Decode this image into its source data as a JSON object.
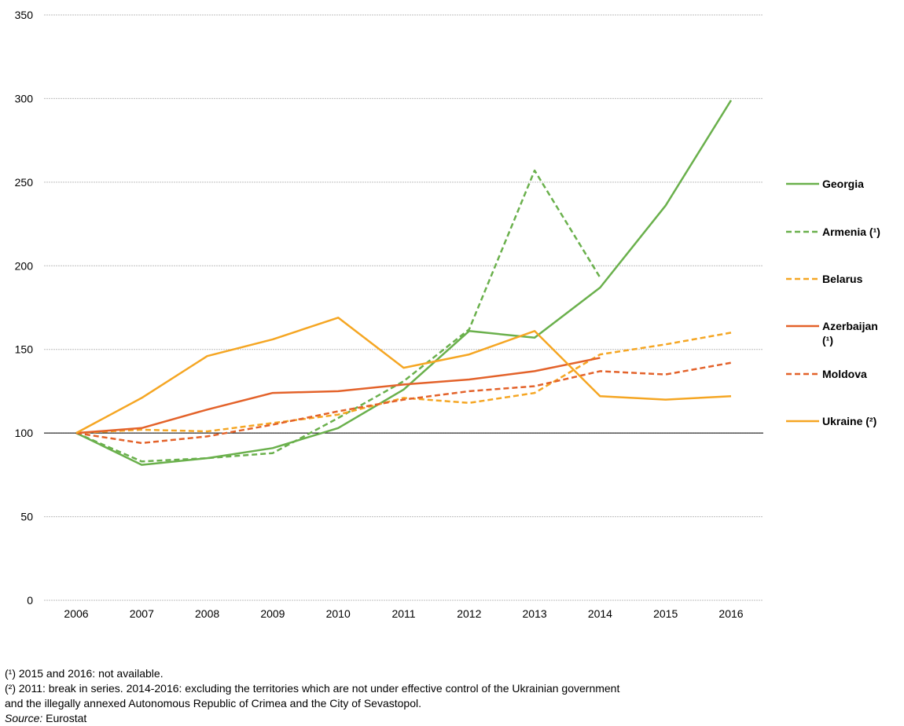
{
  "chart_data": {
    "type": "line",
    "title": "",
    "xlabel": "",
    "ylabel": "",
    "x": [
      "2006",
      "2007",
      "2008",
      "2009",
      "2010",
      "2011",
      "2012",
      "2013",
      "2014",
      "2015",
      "2016"
    ],
    "ylim": [
      0,
      350
    ],
    "yticks": [
      0,
      50,
      100,
      150,
      200,
      250,
      300,
      350
    ],
    "baseline": 100,
    "grid": true,
    "legend_position": "right",
    "series": [
      {
        "name": "Georgia",
        "color": "#6ab04c",
        "dash": false,
        "values": [
          100,
          81,
          85,
          91,
          103,
          126,
          161,
          157,
          187,
          236,
          299
        ]
      },
      {
        "name": "Armenia (¹)",
        "color": "#6ab04c",
        "dash": true,
        "values": [
          100,
          83,
          85,
          88,
          109,
          131,
          162,
          257,
          193,
          null,
          null
        ]
      },
      {
        "name": "Belarus",
        "color": "#f5a623",
        "dash": true,
        "values": [
          100,
          102,
          101,
          106,
          111,
          121,
          118,
          124,
          147,
          153,
          160
        ]
      },
      {
        "name": "Azerbaijan (¹)",
        "color": "#e3622a",
        "dash": false,
        "values": [
          100,
          103,
          114,
          124,
          125,
          129,
          132,
          137,
          145,
          null,
          null
        ]
      },
      {
        "name": "Moldova",
        "color": "#e3622a",
        "dash": true,
        "values": [
          100,
          94,
          98,
          105,
          113,
          120,
          125,
          128,
          137,
          135,
          142
        ]
      },
      {
        "name": "Ukraine (²)",
        "color": "#f5a623",
        "dash": false,
        "values": [
          100,
          121,
          146,
          156,
          169,
          139,
          147,
          161,
          122,
          120,
          122
        ]
      }
    ]
  },
  "footnotes": {
    "note1": "(¹) 2015 and 2016: not available.",
    "note2_line1": "(²) 2011: break in series. 2014-2016: excluding the territories which are not under effective control of the Ukrainian government",
    "note2_line2": "and the illegally annexed Autonomous Republic of Crimea and the City of Sevastopol.",
    "source_label": "Source:",
    "source_value": "Eurostat"
  }
}
